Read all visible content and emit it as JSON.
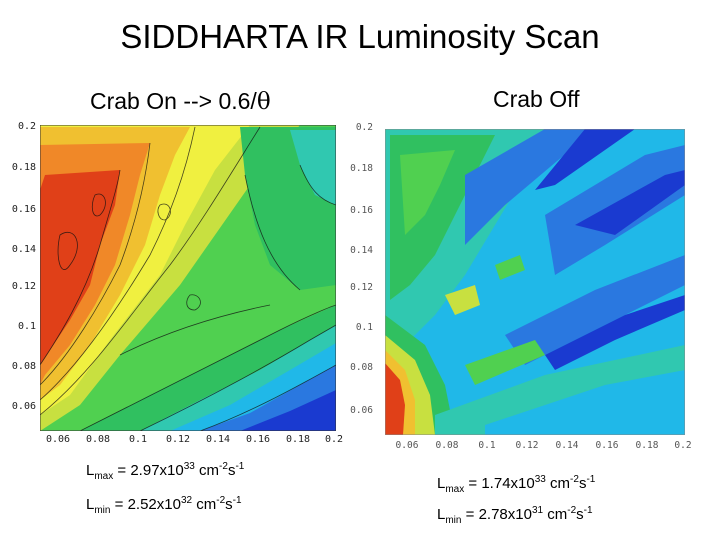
{
  "title": "SIDDHARTA IR Luminosity Scan",
  "panels": [
    {
      "subtitle_text": "Crab On --> 0.6/",
      "subtitle_symbol": "θ",
      "x_ticks": [
        "0.06",
        "0.08",
        "0.1",
        "0.12",
        "0.14",
        "0.16",
        "0.18",
        "0.2"
      ],
      "y_ticks": [
        "0.2",
        "0.18",
        "0.16",
        "0.14",
        "0.12",
        "0.1",
        "0.08",
        "0.06"
      ],
      "lmax": {
        "L": "L",
        "sub": "max",
        "eq": " = 2.97x10",
        "exp": "33",
        "unit": " cm",
        "unit_exp": "-2",
        "s": "s",
        "s_exp": "-1"
      },
      "lmin": {
        "L": "L",
        "sub": "min",
        "eq": " = 2.52x10",
        "exp": "32",
        "unit": " cm",
        "unit_exp": "-2",
        "s": "s",
        "s_exp": "-1"
      }
    },
    {
      "subtitle_text": "Crab Off",
      "x_ticks": [
        "0.06",
        "0.08",
        "0.1",
        "0.12",
        "0.14",
        "0.16",
        "0.18",
        "0.2"
      ],
      "y_ticks": [
        "0.2",
        "0.18",
        "0.16",
        "0.14",
        "0.12",
        "0.1",
        "0.08",
        "0.06"
      ],
      "lmax": {
        "L": "L",
        "sub": "max",
        "eq": " = 1.74x10",
        "exp": "33",
        "unit": " cm",
        "unit_exp": "-2",
        "s": "s",
        "s_exp": "-1"
      },
      "lmin": {
        "L": "L",
        "sub": "min",
        "eq": " = 2.78x10",
        "exp": "31",
        "unit": " cm",
        "unit_exp": "-2",
        "s": "s",
        "s_exp": "-1"
      }
    }
  ],
  "colors": {
    "palette": [
      "#1010a8",
      "#1a3ad0",
      "#2a78e0",
      "#20b8e8",
      "#30c8b0",
      "#30c060",
      "#50d050",
      "#c8e040",
      "#f0f040",
      "#f0c030",
      "#f08828",
      "#e04018"
    ]
  }
}
